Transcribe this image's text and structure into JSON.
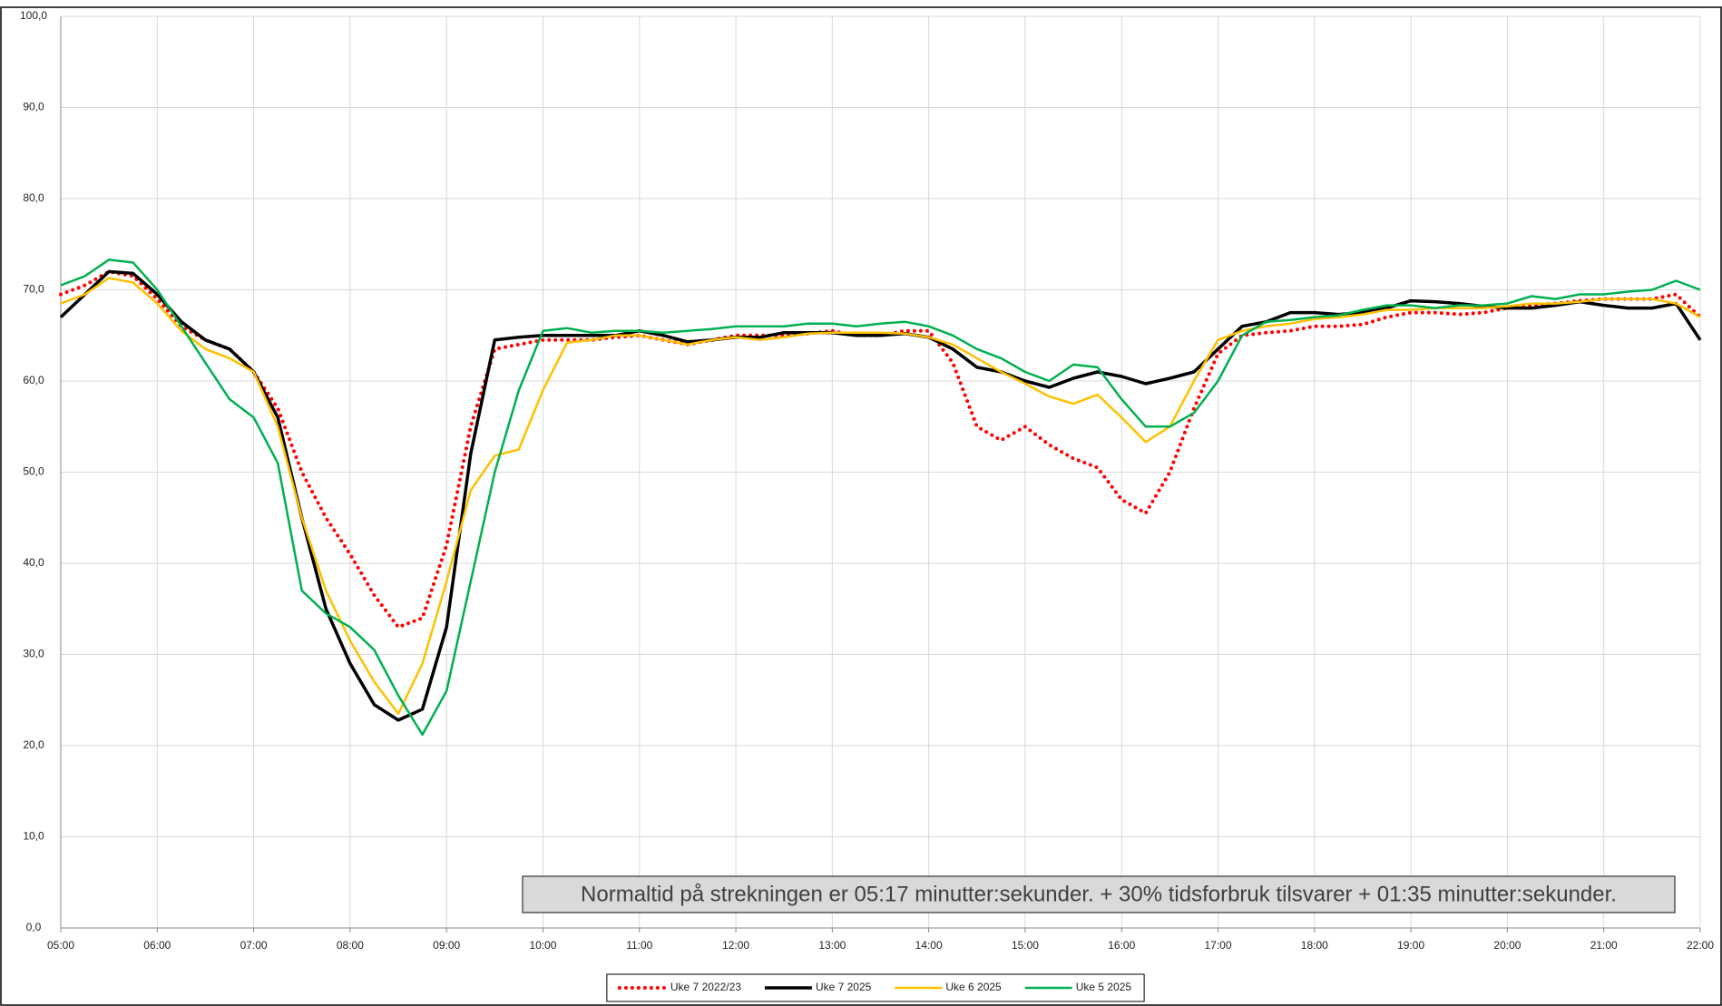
{
  "chart_data": {
    "type": "line",
    "annotation": "Normaltid på strekningen er 05:17 minutter:sekunder. + 30% tidsforbruk tilsvarer  + 01:35 minutter:sekunder.",
    "x": [
      5,
      5.25,
      5.5,
      5.75,
      6,
      6.25,
      6.5,
      6.75,
      7,
      7.25,
      7.5,
      7.75,
      8,
      8.25,
      8.5,
      8.75,
      9,
      9.25,
      9.5,
      9.75,
      10,
      10.25,
      10.5,
      10.75,
      11,
      11.25,
      11.5,
      11.75,
      12,
      12.25,
      12.5,
      12.75,
      13,
      13.25,
      13.5,
      13.75,
      14,
      14.25,
      14.5,
      14.75,
      15,
      15.25,
      15.5,
      15.75,
      16,
      16.25,
      16.5,
      16.75,
      17,
      17.25,
      17.5,
      17.75,
      18,
      18.25,
      18.5,
      18.75,
      19,
      19.25,
      19.5,
      19.75,
      20,
      20.25,
      20.5,
      20.75,
      21,
      21.25,
      21.5,
      21.75,
      22
    ],
    "series": [
      {
        "name": "Uke 7 2022/23",
        "color": "#ff0000",
        "dotted": true,
        "values": [
          69.5,
          70.5,
          72,
          71.5,
          69,
          66,
          64.5,
          63.5,
          61,
          57,
          50,
          45,
          41,
          36.5,
          33,
          34,
          42,
          55,
          63.5,
          64,
          64.5,
          64.5,
          64.5,
          64.8,
          65,
          64.5,
          64,
          64.5,
          65,
          65,
          65,
          65.2,
          65.5,
          65,
          65,
          65.5,
          65.5,
          62,
          55,
          53.5,
          55,
          53,
          51.5,
          50.5,
          47,
          45.5,
          50,
          57,
          63,
          65,
          65.3,
          65.5,
          66,
          66,
          66.2,
          67,
          67.5,
          67.5,
          67.3,
          67.5,
          68,
          68.3,
          68.5,
          68.8,
          69,
          69,
          69,
          69.5,
          67
        ]
      },
      {
        "name": "Uke 7 2025",
        "color": "#000000",
        "values": [
          67,
          69.5,
          72,
          71.8,
          69.5,
          66.5,
          64.5,
          63.5,
          61,
          56,
          45,
          35,
          29,
          24.5,
          22.8,
          24,
          33,
          52,
          64.5,
          64.8,
          65,
          65,
          65,
          65,
          65.5,
          65,
          64.3,
          64.5,
          64.8,
          64.8,
          65.3,
          65.3,
          65.3,
          65,
          65,
          65.2,
          64.8,
          63.5,
          61.5,
          61,
          60,
          59.3,
          60.3,
          61,
          60.5,
          59.7,
          60.3,
          61,
          63.5,
          66,
          66.5,
          67.5,
          67.5,
          67.3,
          67.5,
          68,
          68.8,
          68.7,
          68.5,
          68.2,
          68,
          68,
          68.3,
          68.7,
          68.3,
          68,
          68,
          68.5,
          64.5
        ]
      },
      {
        "name": "Uke 6 2025",
        "color": "#ffc000",
        "values": [
          68.5,
          69.5,
          71.3,
          70.8,
          68.5,
          65.5,
          63.5,
          62.5,
          61,
          55,
          45,
          37,
          31.5,
          27,
          23.5,
          29,
          38,
          48,
          51.8,
          52.5,
          59,
          64.2,
          64.5,
          65,
          65,
          64.5,
          64,
          64.5,
          64.8,
          64.5,
          64.8,
          65.2,
          65.3,
          65.3,
          65.3,
          65.2,
          64.8,
          64,
          62.5,
          61,
          59.7,
          58.3,
          57.5,
          58.5,
          56,
          53.3,
          55,
          60,
          64.5,
          65.5,
          66,
          66.3,
          66.8,
          67,
          67.3,
          67.8,
          67.8,
          68,
          68,
          68,
          68.2,
          68.5,
          68.5,
          68.7,
          69,
          69,
          69,
          68.5,
          67
        ]
      },
      {
        "name": "Uke 5 2025",
        "color": "#00b050",
        "values": [
          70.5,
          71.5,
          73.3,
          73,
          70,
          66,
          62,
          58,
          56,
          51,
          37,
          34.5,
          33,
          30.5,
          25.5,
          21.2,
          26,
          38,
          50,
          59,
          65.5,
          65.8,
          65.3,
          65.5,
          65.5,
          65.3,
          65.5,
          65.7,
          66,
          66,
          66,
          66.3,
          66.3,
          66,
          66.3,
          66.5,
          66,
          65,
          63.5,
          62.5,
          61,
          60,
          61.8,
          61.5,
          58,
          55,
          55,
          56.5,
          60,
          65,
          66.5,
          66.7,
          67,
          67.2,
          67.8,
          68.3,
          68.3,
          68,
          68.3,
          68.3,
          68.5,
          69.3,
          69,
          69.5,
          69.5,
          69.8,
          70,
          71,
          70
        ]
      }
    ],
    "xlim": [
      5,
      22
    ],
    "xticks": [
      {
        "value": 5,
        "label": "05:00"
      },
      {
        "value": 6,
        "label": "06:00"
      },
      {
        "value": 7,
        "label": "07:00"
      },
      {
        "value": 8,
        "label": "08:00"
      },
      {
        "value": 9,
        "label": "09:00"
      },
      {
        "value": 10,
        "label": "10:00"
      },
      {
        "value": 11,
        "label": "11:00"
      },
      {
        "value": 12,
        "label": "12:00"
      },
      {
        "value": 13,
        "label": "13:00"
      },
      {
        "value": 14,
        "label": "14:00"
      },
      {
        "value": 15,
        "label": "15:00"
      },
      {
        "value": 16,
        "label": "16:00"
      },
      {
        "value": 17,
        "label": "17:00"
      },
      {
        "value": 18,
        "label": "18:00"
      },
      {
        "value": 19,
        "label": "19:00"
      },
      {
        "value": 20,
        "label": "20:00"
      },
      {
        "value": 21,
        "label": "21:00"
      },
      {
        "value": 22,
        "label": "22:00"
      }
    ],
    "ylim": [
      0,
      100
    ],
    "yticks": [
      {
        "value": 0,
        "label": "0,0"
      },
      {
        "value": 10,
        "label": "10,0"
      },
      {
        "value": 20,
        "label": "20,0"
      },
      {
        "value": 30,
        "label": "30,0"
      },
      {
        "value": 40,
        "label": "40,0"
      },
      {
        "value": 50,
        "label": "50,0"
      },
      {
        "value": 60,
        "label": "60,0"
      },
      {
        "value": 70,
        "label": "70,0"
      },
      {
        "value": 80,
        "label": "80,0"
      },
      {
        "value": 90,
        "label": "90,0"
      },
      {
        "value": 100,
        "label": "100,0"
      }
    ],
    "grid": true
  }
}
